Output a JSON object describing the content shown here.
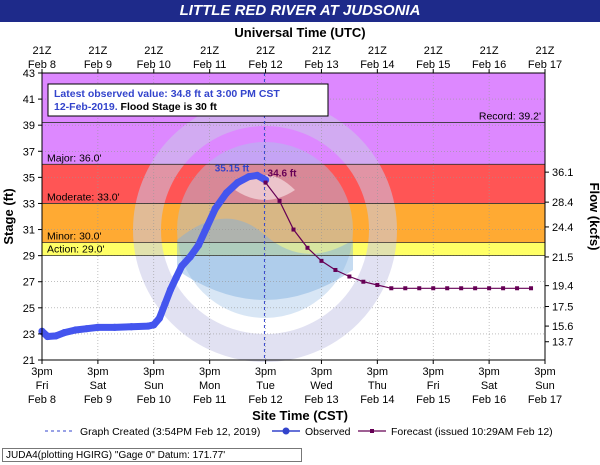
{
  "title": "LITTLE RED RIVER AT JUDSONIA",
  "chart_data": {
    "type": "line",
    "top_axis_title": "Universal Time (UTC)",
    "top_ticks": [
      {
        "hour": "21Z",
        "date": "Feb 8"
      },
      {
        "hour": "21Z",
        "date": "Feb 9"
      },
      {
        "hour": "21Z",
        "date": "Feb 10"
      },
      {
        "hour": "21Z",
        "date": "Feb 11"
      },
      {
        "hour": "21Z",
        "date": "Feb 12"
      },
      {
        "hour": "21Z",
        "date": "Feb 13"
      },
      {
        "hour": "21Z",
        "date": "Feb 14"
      },
      {
        "hour": "21Z",
        "date": "Feb 15"
      },
      {
        "hour": "21Z",
        "date": "Feb 16"
      },
      {
        "hour": "21Z",
        "date": "Feb 17"
      }
    ],
    "xlabel": "Site Time (CST)",
    "bottom_ticks": [
      {
        "time": "3pm",
        "day": "Fri",
        "date": "Feb 8"
      },
      {
        "time": "3pm",
        "day": "Sat",
        "date": "Feb 9"
      },
      {
        "time": "3pm",
        "day": "Sun",
        "date": "Feb 10"
      },
      {
        "time": "3pm",
        "day": "Mon",
        "date": "Feb 11"
      },
      {
        "time": "3pm",
        "day": "Tue",
        "date": "Feb 12"
      },
      {
        "time": "3pm",
        "day": "Wed",
        "date": "Feb 13"
      },
      {
        "time": "3pm",
        "day": "Thu",
        "date": "Feb 14"
      },
      {
        "time": "3pm",
        "day": "Fri",
        "date": "Feb 15"
      },
      {
        "time": "3pm",
        "day": "Sat",
        "date": "Feb 16"
      },
      {
        "time": "3pm",
        "day": "Sun",
        "date": "Feb 17"
      }
    ],
    "ylabel": "Stage (ft)",
    "ylim": [
      21,
      43
    ],
    "yticks": [
      21,
      23,
      25,
      27,
      29,
      31,
      33,
      35,
      37,
      39,
      41,
      43
    ],
    "y2label": "Flow (kcfs)",
    "y2ticks": [
      {
        "stage": 22.4,
        "label": "13.7"
      },
      {
        "stage": 23.6,
        "label": "15.6"
      },
      {
        "stage": 25.1,
        "label": "17.5"
      },
      {
        "stage": 26.7,
        "label": "19.4"
      },
      {
        "stage": 28.9,
        "label": "21.5"
      },
      {
        "stage": 31.2,
        "label": "24.4"
      },
      {
        "stage": 33.1,
        "label": "28.4"
      },
      {
        "stage": 35.4,
        "label": "36.1"
      }
    ],
    "xlim_days": [
      0,
      9
    ],
    "flood_categories": [
      {
        "label": "Action: 29.0'",
        "from": 29,
        "to": 30,
        "color": "#ffff66"
      },
      {
        "label": "Minor: 30.0'",
        "from": 30,
        "to": 33,
        "color": "#ffaa33"
      },
      {
        "label": "Moderate: 33.0'",
        "from": 33,
        "to": 36,
        "color": "#ff5555"
      },
      {
        "label": "Major: 36.0'",
        "from": 36,
        "to": 43,
        "color": "#dd88ff"
      }
    ],
    "record": {
      "label": "Record: 39.2'",
      "value": 39.2
    },
    "observed": {
      "name": "Observed",
      "color": "#4455ee",
      "points": [
        [
          0.0,
          23.2
        ],
        [
          0.1,
          22.8
        ],
        [
          0.25,
          22.85
        ],
        [
          0.4,
          23.1
        ],
        [
          0.6,
          23.3
        ],
        [
          0.8,
          23.4
        ],
        [
          1.0,
          23.5
        ],
        [
          1.3,
          23.5
        ],
        [
          1.6,
          23.55
        ],
        [
          1.9,
          23.6
        ],
        [
          2.0,
          23.7
        ],
        [
          2.1,
          24.2
        ],
        [
          2.2,
          25.3
        ],
        [
          2.3,
          26.4
        ],
        [
          2.4,
          27.3
        ],
        [
          2.5,
          28.2
        ],
        [
          2.65,
          28.9
        ],
        [
          2.8,
          29.8
        ],
        [
          2.95,
          31.2
        ],
        [
          3.1,
          32.6
        ],
        [
          3.3,
          33.8
        ],
        [
          3.5,
          34.6
        ],
        [
          3.7,
          35.05
        ],
        [
          3.85,
          35.15
        ],
        [
          4.0,
          34.8
        ]
      ],
      "peak_label": "35.15 ft",
      "peak": [
        3.85,
        35.15
      ]
    },
    "forecast": {
      "name": "Forecast (issued 10:29AM Feb 12)",
      "color": "#660055",
      "points": [
        [
          4.0,
          34.6
        ],
        [
          4.25,
          33.2
        ],
        [
          4.5,
          31.0
        ],
        [
          4.75,
          29.6
        ],
        [
          5.0,
          28.6
        ],
        [
          5.25,
          27.9
        ],
        [
          5.5,
          27.4
        ],
        [
          5.75,
          27.0
        ],
        [
          6.0,
          26.75
        ],
        [
          6.25,
          26.5
        ],
        [
          6.5,
          26.5
        ],
        [
          6.75,
          26.5
        ],
        [
          7.0,
          26.5
        ],
        [
          7.25,
          26.5
        ],
        [
          7.5,
          26.5
        ],
        [
          7.75,
          26.5
        ],
        [
          8.0,
          26.5
        ],
        [
          8.25,
          26.5
        ],
        [
          8.5,
          26.5
        ],
        [
          8.75,
          26.5
        ]
      ],
      "start_label": "34.6 ft"
    },
    "graph_created": {
      "label": "Graph Created (3:54PM Feb 12, 2019)",
      "x": 3.98
    },
    "latest_box": {
      "line1": "Latest observed value: 34.8 ft at 3:00 PM CST",
      "line2_date": "12-Feb-2019.",
      "line2_rest": "Flood Stage is 30 ft"
    },
    "legend": [
      "Graph Created (3:54PM Feb 12, 2019)",
      "Observed",
      "Forecast (issued 10:29AM Feb 12)"
    ]
  },
  "footer": "JUDA4(plotting HGIRG) \"Gage 0\" Datum: 171.77'"
}
